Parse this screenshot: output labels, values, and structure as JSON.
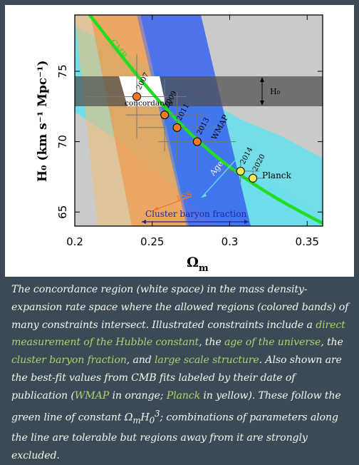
{
  "chart_data": {
    "type": "scatter",
    "xlabel": "Ω",
    "xlabel_sub": "m",
    "ylabel": "H₀ (km s⁻¹ Mpc⁻¹)",
    "xlim": [
      0.2,
      0.36
    ],
    "ylim": [
      64,
      79
    ],
    "xticks": [
      0.2,
      0.25,
      0.3,
      0.35
    ],
    "xtick_labels": [
      "0.2",
      "0.25",
      "0.3",
      "0.35"
    ],
    "yticks": [
      65,
      70,
      75
    ],
    "ytick_labels": [
      "65",
      "70",
      "75"
    ],
    "grid": false,
    "bands": [
      {
        "label": "H₀",
        "color": "#555555",
        "y_range": [
          72,
          74
        ]
      },
      {
        "label": "Age",
        "color": "#66e0ec"
      },
      {
        "label": "Cluster baryon fraction",
        "color": "#3a64f0",
        "x_range": [
          0.2,
          0.32
        ]
      },
      {
        "label": "LSS",
        "color": "#f0a050"
      }
    ],
    "regions": [
      {
        "label": "concordance",
        "color": "#ffffff"
      }
    ],
    "curve": {
      "label": "CMB",
      "color": "#22dd22",
      "relation": "Ω_m H₀³ = constant"
    },
    "points": [
      {
        "label": "2007",
        "x": 0.24,
        "y": 73.2,
        "xerr": 0.032,
        "yerr": 3.0,
        "color": "#f07a22"
      },
      {
        "label": "2009",
        "x": 0.258,
        "y": 71.9,
        "xerr": 0.025,
        "yerr": 2.6,
        "color": "#f07a22"
      },
      {
        "label": "2011",
        "x": 0.266,
        "y": 71.0,
        "xerr": 0.025,
        "yerr": 2.5,
        "color": "#f07a22"
      },
      {
        "label": "2013",
        "x": 0.279,
        "y": 70.0,
        "xerr": 0.025,
        "yerr": 2.2,
        "color": "#f07a22"
      },
      {
        "label": "2014",
        "x": 0.307,
        "y": 67.9,
        "xerr": 0.012,
        "yerr": 0.8,
        "color": "#f5eb50"
      },
      {
        "label": "2020",
        "x": 0.315,
        "y": 67.4,
        "xerr": 0.007,
        "yerr": 0.5,
        "color": "#f5eb50"
      }
    ],
    "text_labels": {
      "wmap": "WMAP",
      "planck": "Planck",
      "h0": "H₀",
      "age": "Age",
      "lss": "LSS",
      "cluster": "Cluster baryon fraction",
      "cmb": "CMB",
      "concordance": "concordance"
    }
  },
  "caption": {
    "s1": "The concordance region (white space) in the mass density-expansion rate space where the allowed regions (colored bands) of many constraints intersect. Illustrated constraints include a ",
    "l1": "direct measurement of the Hubble constant",
    "s2": ", the ",
    "l2": "age of the universe",
    "s3": ", the ",
    "l3": "cluster baryon fraction",
    "s4": ", and ",
    "l4": "large scale structure",
    "s5": ". Also shown are the best-fit values from CMB fits labeled by their date of publication (",
    "l5": "WMAP",
    "s6": " in orange; ",
    "l6": "Planck",
    "s7": " in yellow). These follow the green line of constant Ω",
    "sub_m": "m",
    "s8": "H",
    "sub_0": "0",
    "sup_3": "3",
    "s9": "; combinations of parameters along the line are tolerable but regions away from it are strongly excluded."
  }
}
